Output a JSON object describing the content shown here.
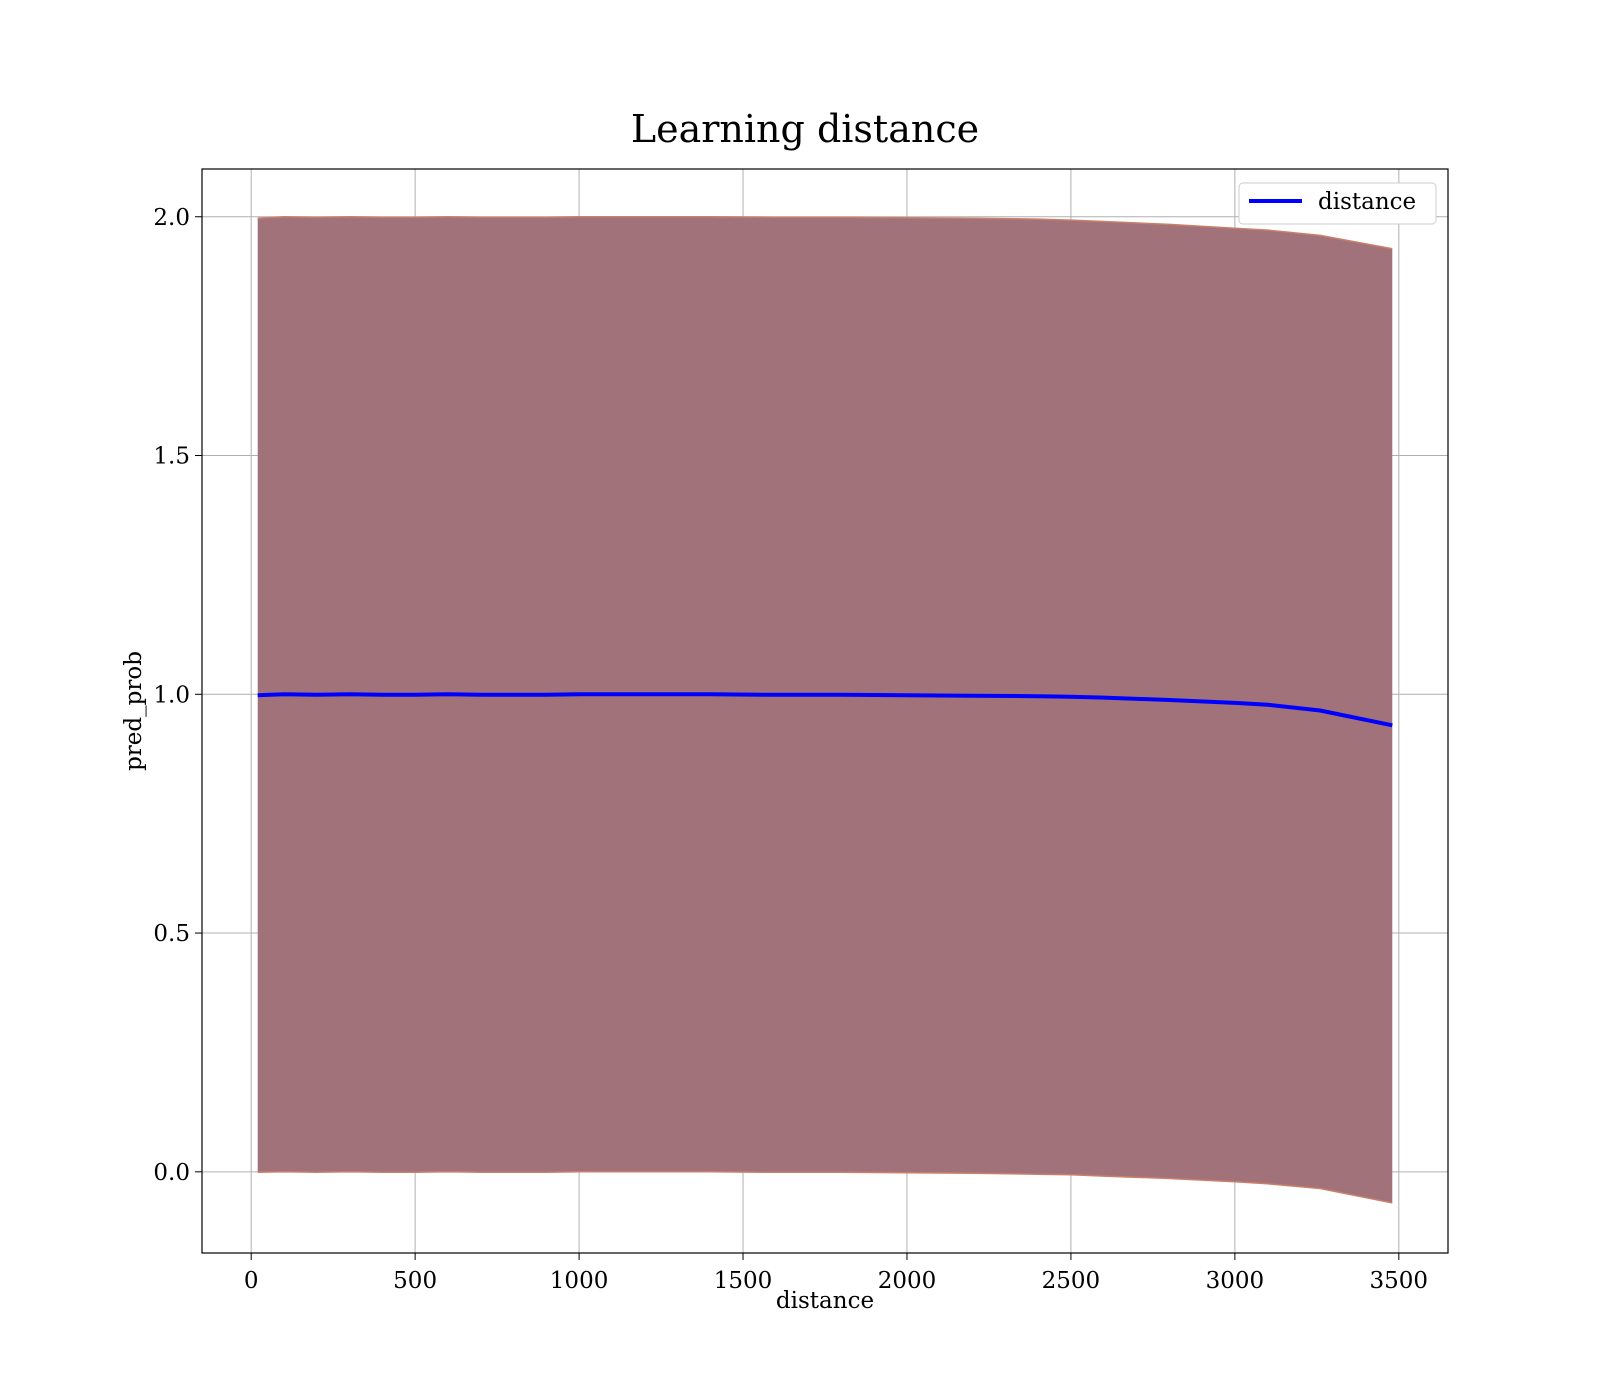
{
  "chart_data": {
    "type": "line",
    "title": "Learning distance",
    "xlabel": "distance",
    "ylabel": "pred_prob",
    "xlim": [
      -150,
      3650
    ],
    "ylim": [
      -0.17,
      2.1
    ],
    "xticks": [
      0,
      500,
      1000,
      1500,
      2000,
      2500,
      3000,
      3500
    ],
    "xtick_labels": [
      "0",
      "500",
      "1000",
      "1500",
      "2000",
      "2500",
      "3000",
      "3500"
    ],
    "yticks": [
      0.0,
      0.5,
      1.0,
      1.5,
      2.0
    ],
    "ytick_labels": [
      "0.0",
      "0.5",
      "1.0",
      "1.5",
      "2.0"
    ],
    "grid": true,
    "legend_position": "top-right",
    "colors": {
      "line": "#0000ff",
      "band_fill": "#a2727a",
      "band_edge": "#c9806a",
      "grid": "#b0b0b0"
    },
    "series": [
      {
        "name": "distance",
        "x": [
          20,
          100,
          200,
          300,
          400,
          500,
          600,
          700,
          800,
          900,
          1000,
          1200,
          1400,
          1600,
          1800,
          2000,
          2200,
          2400,
          2500,
          2600,
          2800,
          3000,
          3100,
          3260,
          3480
        ],
        "y": [
          0.998,
          1.0,
          0.999,
          1.0,
          0.999,
          0.999,
          1.0,
          0.999,
          0.999,
          0.999,
          1.0,
          1.0,
          1.0,
          0.999,
          0.999,
          0.998,
          0.997,
          0.996,
          0.995,
          0.993,
          0.988,
          0.982,
          0.978,
          0.966,
          0.935
        ]
      }
    ],
    "band": {
      "x": [
        20,
        100,
        200,
        300,
        400,
        500,
        600,
        700,
        800,
        900,
        1000,
        1200,
        1400,
        1600,
        1800,
        2000,
        2200,
        2400,
        2500,
        2600,
        2800,
        3000,
        3100,
        3260,
        3480
      ],
      "upper": [
        1.997,
        2.0,
        1.999,
        2.0,
        1.999,
        1.999,
        2.0,
        1.999,
        1.999,
        1.999,
        2.0,
        2.0,
        2.0,
        1.999,
        1.999,
        1.998,
        1.997,
        1.995,
        1.993,
        1.99,
        1.984,
        1.976,
        1.972,
        1.961,
        1.933
      ],
      "lower": [
        -0.001,
        0.0,
        -0.001,
        0.0,
        -0.001,
        -0.001,
        0.0,
        -0.001,
        -0.001,
        -0.001,
        0.0,
        0.0,
        0.0,
        -0.001,
        -0.001,
        -0.002,
        -0.003,
        -0.005,
        -0.006,
        -0.009,
        -0.014,
        -0.021,
        -0.025,
        -0.035,
        -0.065
      ]
    }
  }
}
